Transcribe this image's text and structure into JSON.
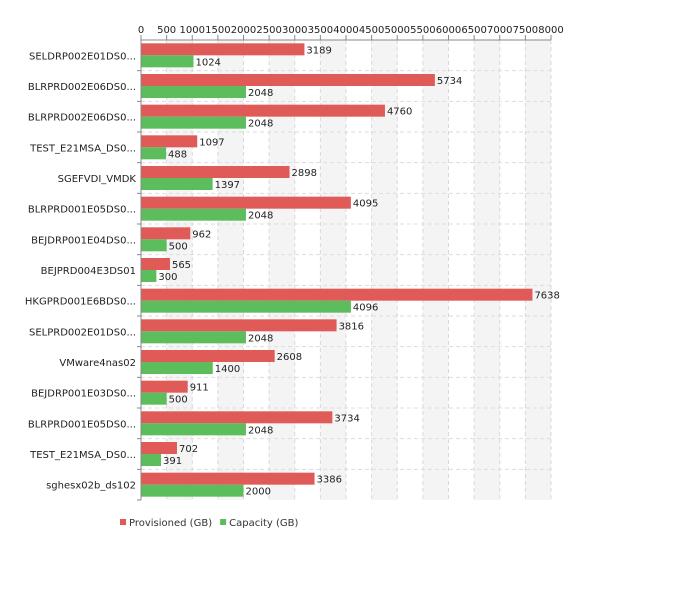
{
  "chart_data": {
    "type": "bar",
    "orientation": "horizontal",
    "categories": [
      "SELDRP002E01DS0...",
      "BLRPRD002E06DS0...",
      "BLRPRD002E06DS0...",
      "TEST_E21MSA_DS0...",
      "SGEFVDI_VMDK",
      "BLRPRD001E05DS0...",
      "BEJDRP001E04DS0...",
      "BEJPRD004E3DS01",
      "HKGPRD001E6BDS0...",
      "SELPRD002E01DS0...",
      "VMware4nas02",
      "BEJDRP001E03DS0...",
      "BLRPRD001E05DS0...",
      "TEST_E21MSA_DS0...",
      "sghesx02b_ds102"
    ],
    "series": [
      {
        "name": "Provisioned (GB)",
        "color": "#e05a58",
        "values": [
          3189,
          5734,
          4760,
          1097,
          2898,
          4095,
          962,
          565,
          7638,
          3816,
          2608,
          911,
          3734,
          702,
          3386
        ]
      },
      {
        "name": "Capacity (GB)",
        "color": "#5cbd5c",
        "values": [
          1024,
          2048,
          2048,
          488,
          1397,
          2048,
          500,
          300,
          4096,
          2048,
          1400,
          500,
          2048,
          391,
          2000
        ]
      }
    ],
    "xlim": [
      0,
      8000
    ],
    "xticks": [
      "0",
      "500",
      "1000",
      "1500",
      "2000",
      "2500",
      "3000",
      "3500",
      "4000",
      "4500",
      "5000",
      "5500",
      "6000",
      "6500",
      "7000",
      "7500",
      "8000"
    ],
    "tick_values": [
      0,
      500,
      1000,
      1500,
      2000,
      2500,
      3000,
      3500,
      4000,
      4500,
      5000,
      5500,
      6000,
      6500,
      7000,
      7500,
      8000
    ],
    "axis_position": "top",
    "grid": true,
    "legend_position": "bottom-left"
  }
}
